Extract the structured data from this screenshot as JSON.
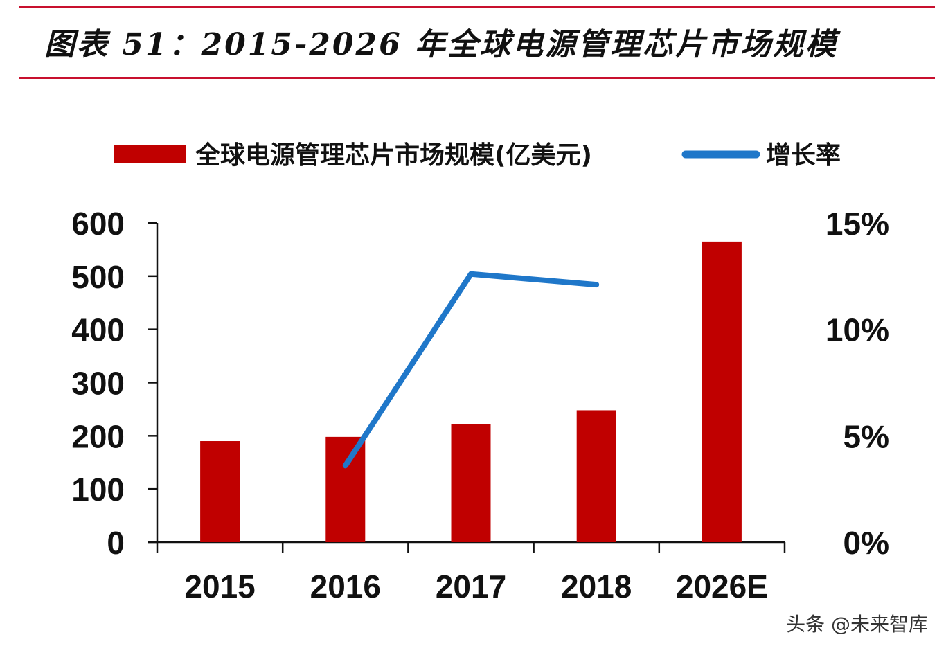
{
  "header": {
    "title": "图表 51：2015-2026 年全球电源管理芯片市场规模"
  },
  "colors": {
    "accent": "#c8102e",
    "bar": "#c00000",
    "line": "#1f77c9"
  },
  "watermark": "头条 @未来智库",
  "chart_data": {
    "type": "bar",
    "categories": [
      "2015",
      "2016",
      "2017",
      "2018",
      "2026E"
    ],
    "series": [
      {
        "name": "全球电源管理芯片市场规模(亿美元)",
        "kind": "bar",
        "axis": "left",
        "values": [
          190,
          198,
          222,
          248,
          565
        ]
      },
      {
        "name": "增长率",
        "kind": "line",
        "axis": "right",
        "values": [
          null,
          3.6,
          12.6,
          12.1,
          null
        ]
      }
    ],
    "y_left": {
      "ticks": [
        "0",
        "100",
        "200",
        "300",
        "400",
        "500",
        "600"
      ],
      "ylim": [
        0,
        600
      ]
    },
    "y_right": {
      "ticks": [
        "0%",
        "5%",
        "10%",
        "15%"
      ],
      "ylim": [
        0,
        15
      ]
    },
    "legend": {
      "position": "top"
    },
    "grid": false,
    "title": "图表 51：2015-2026 年全球电源管理芯片市场规模"
  }
}
